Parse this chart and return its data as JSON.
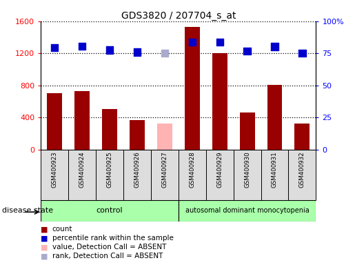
{
  "title": "GDS3820 / 207704_s_at",
  "samples": [
    "GSM400923",
    "GSM400924",
    "GSM400925",
    "GSM400926",
    "GSM400927",
    "GSM400928",
    "GSM400929",
    "GSM400930",
    "GSM400931",
    "GSM400932"
  ],
  "bar_values": [
    700,
    730,
    510,
    370,
    330,
    1530,
    1200,
    460,
    810,
    330
  ],
  "bar_absent": [
    false,
    false,
    false,
    false,
    true,
    false,
    false,
    false,
    false,
    false
  ],
  "dot_values": [
    1270,
    1290,
    1240,
    1215,
    1205,
    1340,
    1340,
    1230,
    1285,
    1200
  ],
  "dot_absent": [
    false,
    false,
    false,
    false,
    true,
    false,
    false,
    false,
    false,
    false
  ],
  "bar_color_normal": "#990000",
  "bar_color_absent": "#ffb3b3",
  "dot_color_normal": "#0000cc",
  "dot_color_absent": "#aaaacc",
  "ylim_left": [
    0,
    1600
  ],
  "ylim_right": [
    0,
    100
  ],
  "yticks_left": [
    0,
    400,
    800,
    1200,
    1600
  ],
  "yticks_right_labels": [
    "0",
    "25",
    "50",
    "75",
    "100%"
  ],
  "yticks_right_vals": [
    0,
    25,
    50,
    75,
    100
  ],
  "control_count": 5,
  "control_label": "control",
  "disease_label": "autosomal dominant monocytopenia",
  "disease_state_label": "disease state",
  "legend_items": [
    {
      "label": "count",
      "color": "#990000"
    },
    {
      "label": "percentile rank within the sample",
      "color": "#0000cc"
    },
    {
      "label": "value, Detection Call = ABSENT",
      "color": "#ffb3b3"
    },
    {
      "label": "rank, Detection Call = ABSENT",
      "color": "#aaaacc"
    }
  ],
  "bar_width": 0.55,
  "dot_size": 55,
  "bg_color": "#dddddd",
  "plot_bg": "#ffffff"
}
